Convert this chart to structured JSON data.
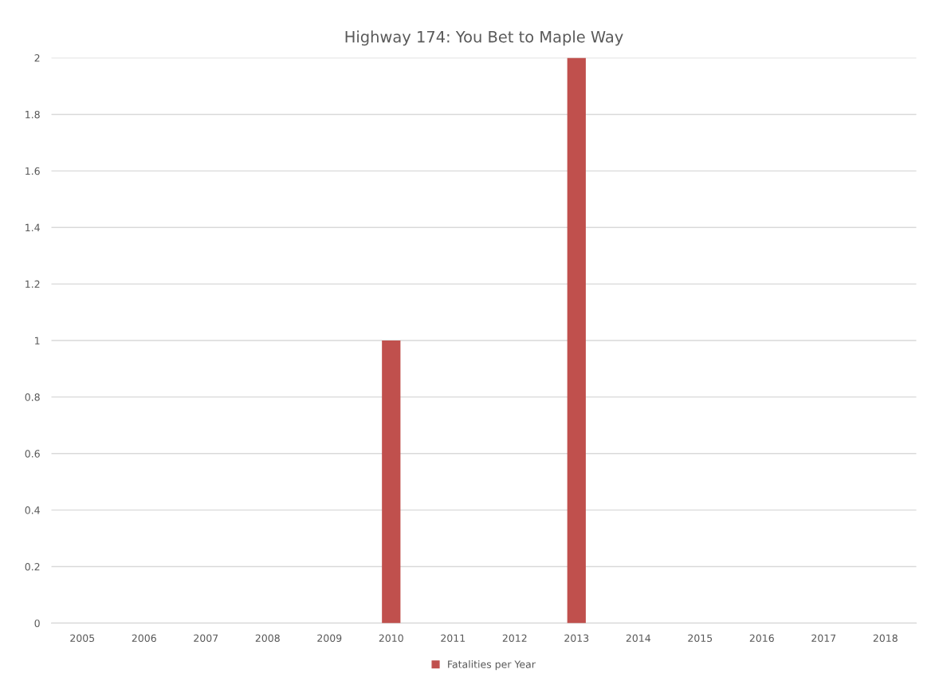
{
  "chart_data": {
    "type": "bar",
    "title": "Highway 174: You Bet to Maple Way",
    "categories": [
      "2005",
      "2006",
      "2007",
      "2008",
      "2009",
      "2010",
      "2011",
      "2012",
      "2013",
      "2014",
      "2015",
      "2016",
      "2017",
      "2018"
    ],
    "series": [
      {
        "name": "Fatalities per Year",
        "color": "#c0504d",
        "values": [
          0,
          0,
          0,
          0,
          0,
          1,
          0,
          0,
          2,
          0,
          0,
          0,
          0,
          0
        ]
      }
    ],
    "ylim": [
      0,
      2
    ],
    "yticks": [
      0,
      0.2,
      0.4,
      0.6,
      0.8,
      1,
      1.2,
      1.4,
      1.6,
      1.8,
      2
    ],
    "grid": "y",
    "legend": "bottom"
  }
}
